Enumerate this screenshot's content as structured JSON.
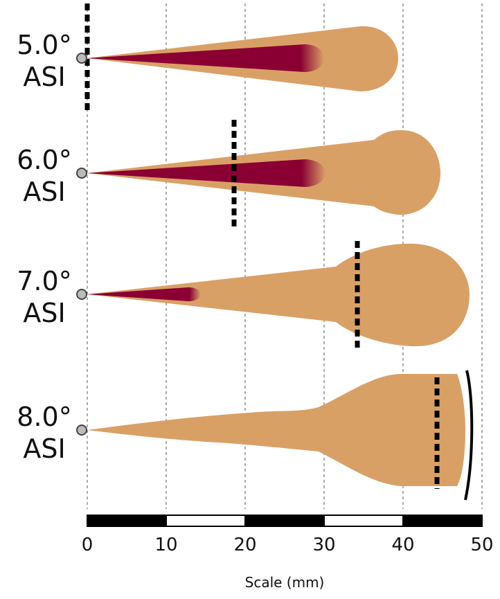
{
  "rows": [
    {
      "angle": "5.0°",
      "unit": "ASI"
    },
    {
      "angle": "6.0°",
      "unit": "ASI"
    },
    {
      "angle": "7.0°",
      "unit": "ASI"
    },
    {
      "angle": "8.0°",
      "unit": "ASI"
    }
  ],
  "scale": {
    "ticks": [
      0,
      10,
      20,
      30,
      40,
      50
    ],
    "label": "Scale (mm)"
  }
}
